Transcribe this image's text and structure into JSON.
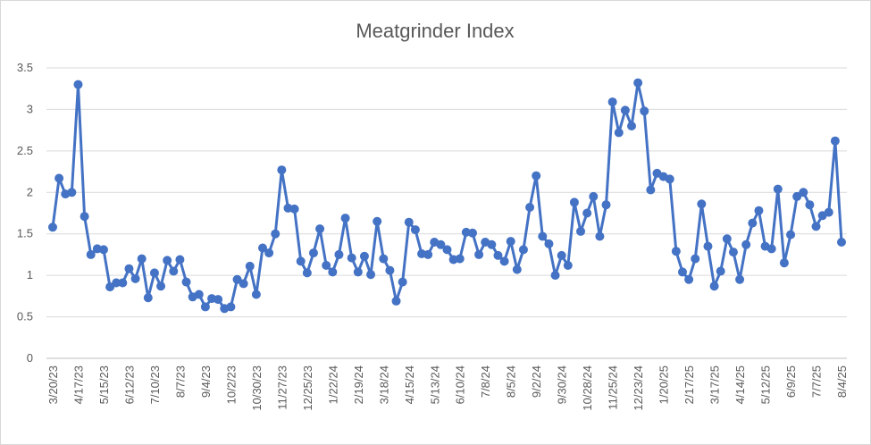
{
  "chart_data": {
    "type": "line",
    "title": "Meatgrinder Index",
    "xlabel": "",
    "ylabel": "",
    "ylim": [
      0,
      3.5
    ],
    "yticks": [
      "0",
      "0.5",
      "1",
      "1.5",
      "2",
      "2.5",
      "3",
      "3.5"
    ],
    "grid": true,
    "legend": "none",
    "series_color": "#4472C4",
    "x_tick_labels": [
      "3/20/23",
      "4/17/23",
      "5/15/23",
      "6/12/23",
      "7/10/23",
      "8/7/23",
      "9/4/23",
      "10/2/23",
      "10/30/23",
      "11/27/23",
      "12/25/23",
      "1/22/24",
      "2/19/24",
      "3/18/24",
      "4/15/24",
      "5/13/24",
      "6/10/24",
      "7/8/24",
      "8/5/24",
      "9/2/24",
      "9/30/24",
      "10/28/24",
      "11/25/24",
      "12/23/24",
      "1/20/25",
      "2/17/25",
      "3/17/25",
      "4/14/25",
      "5/12/25",
      "6/9/25",
      "7/7/25",
      "8/4/25"
    ],
    "series": [
      {
        "values": [
          1.58,
          2.17,
          1.98,
          2.0,
          3.3,
          1.71,
          1.25,
          1.32,
          1.31,
          0.86,
          0.91,
          0.91,
          1.08,
          0.96,
          1.2,
          0.73,
          1.03,
          0.87,
          1.18,
          1.05,
          1.19,
          0.92,
          0.74,
          0.77,
          0.62,
          0.72,
          0.71,
          0.6,
          0.62,
          0.95,
          0.9,
          1.11,
          0.77,
          1.33,
          1.27,
          1.5,
          2.27,
          1.81,
          1.8,
          1.17,
          1.03,
          1.27,
          1.56,
          1.12,
          1.04,
          1.25,
          1.69,
          1.21,
          1.04,
          1.23,
          1.01,
          1.65,
          1.2,
          1.06,
          0.69,
          0.92,
          1.64,
          1.55,
          1.26,
          1.25,
          1.4,
          1.37,
          1.31,
          1.19,
          1.2,
          1.52,
          1.51,
          1.25,
          1.4,
          1.37,
          1.24,
          1.17,
          1.41,
          1.07,
          1.31,
          1.82,
          2.2,
          1.47,
          1.38,
          1.0,
          1.24,
          1.12,
          1.88,
          1.53,
          1.75,
          1.95,
          1.47,
          1.85,
          3.09,
          2.72,
          2.99,
          2.8,
          3.32,
          2.98,
          2.03,
          2.23,
          2.19,
          2.16,
          1.29,
          1.04,
          0.95,
          1.2,
          1.86,
          1.35,
          0.87,
          1.05,
          1.44,
          1.28,
          0.95,
          1.37,
          1.63,
          1.78,
          1.35,
          1.32,
          2.04,
          1.15,
          1.49,
          1.95,
          2.0,
          1.85,
          1.59,
          1.72,
          1.76,
          2.62,
          1.4
        ]
      }
    ]
  }
}
